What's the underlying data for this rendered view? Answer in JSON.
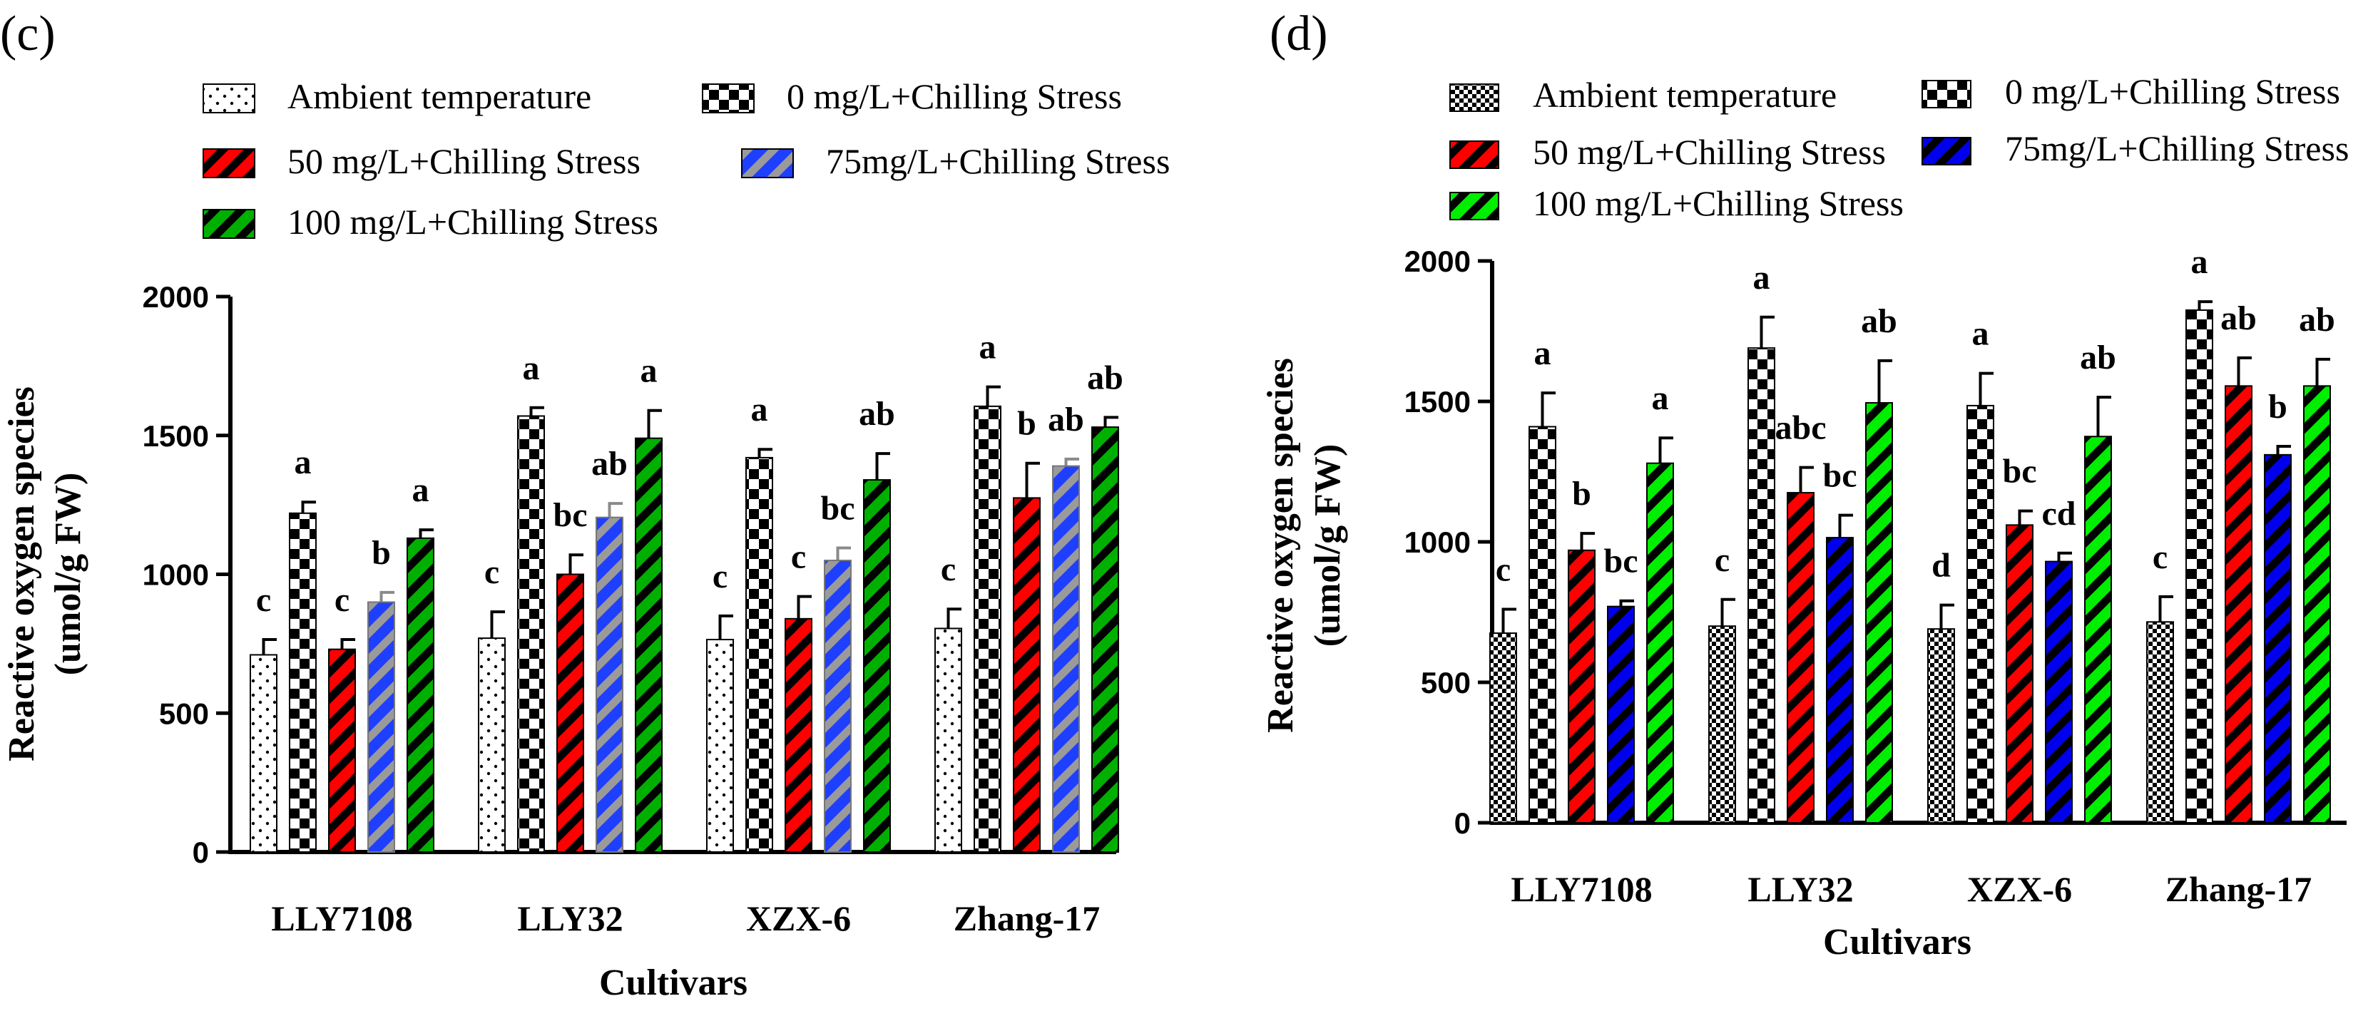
{
  "chart_data": [
    {
      "panel": "(c)",
      "type": "bar",
      "xlabel": "Cultivars",
      "ylabel": [
        "Reactive oxygen species",
        "(umol/g FW)"
      ],
      "ylim": [
        0,
        2000
      ],
      "yticks": [
        0,
        500,
        1000,
        1500,
        2000
      ],
      "categories": [
        "LLY7108",
        "LLY32",
        "XZX-6",
        "Zhang-17"
      ],
      "series": [
        {
          "name": "Ambient temperature",
          "style": "dots",
          "color": "#ffffff",
          "values": [
            710,
            770,
            765,
            805
          ],
          "errors": [
            55,
            95,
            85,
            70
          ],
          "labels": [
            "c",
            "c",
            "c",
            "c"
          ]
        },
        {
          "name": "0 mg/L+Chilling Stress",
          "style": "checker",
          "color": "#000000",
          "values": [
            1220,
            1570,
            1420,
            1605
          ],
          "errors": [
            40,
            30,
            30,
            70
          ],
          "labels": [
            "a",
            "a",
            "a",
            "a"
          ]
        },
        {
          "name": "50 mg/L+Chilling Stress",
          "style": "stripe",
          "color": "#ff0000",
          "values": [
            730,
            1000,
            840,
            1275
          ],
          "errors": [
            35,
            70,
            80,
            125
          ],
          "labels": [
            "c",
            "bc",
            "c",
            "b"
          ]
        },
        {
          "name": "75mg/L+Chilling Stress",
          "style": "stripe-gray",
          "color": "#1f3fff",
          "values": [
            900,
            1205,
            1050,
            1390
          ],
          "errors": [
            35,
            50,
            45,
            25
          ],
          "labels": [
            "b",
            "ab",
            "bc",
            "ab"
          ]
        },
        {
          "name": "100 mg/L+Chilling Stress",
          "style": "stripe",
          "color": "#00b000",
          "values": [
            1130,
            1490,
            1340,
            1530
          ],
          "errors": [
            30,
            100,
            95,
            35
          ],
          "labels": [
            "a",
            "a",
            "ab",
            "ab"
          ]
        }
      ]
    },
    {
      "panel": "(d)",
      "type": "bar",
      "xlabel": "Cultivars",
      "ylabel": [
        "Reactive oxygen species",
        "(umol/g FW)"
      ],
      "ylim": [
        0,
        2000
      ],
      "yticks": [
        0,
        500,
        1000,
        1500,
        2000
      ],
      "categories": [
        "LLY7108",
        "LLY32",
        "XZX-6",
        "Zhang-17"
      ],
      "series": [
        {
          "name": "Ambient temperature",
          "style": "checker-fine",
          "color": "#ffffff",
          "values": [
            675,
            700,
            690,
            715
          ],
          "errors": [
            85,
            95,
            85,
            90
          ],
          "labels": [
            "c",
            "c",
            "d",
            "c"
          ]
        },
        {
          "name": "0 mg/L+Chilling Stress",
          "style": "checker",
          "color": "#000000",
          "values": [
            1410,
            1690,
            1485,
            1825
          ],
          "errors": [
            120,
            110,
            115,
            30
          ],
          "labels": [
            "a",
            "a",
            "a",
            "a"
          ]
        },
        {
          "name": "50 mg/L+Chilling Stress",
          "style": "stripe",
          "color": "#ff0000",
          "values": [
            970,
            1175,
            1060,
            1555
          ],
          "errors": [
            60,
            90,
            50,
            100
          ],
          "labels": [
            "b",
            "abc",
            "bc",
            "ab"
          ]
        },
        {
          "name": "75mg/L+Chilling Stress",
          "style": "stripe",
          "color": "#0000ee",
          "values": [
            770,
            1015,
            930,
            1310
          ],
          "errors": [
            20,
            80,
            30,
            30
          ],
          "labels": [
            "bc",
            "bc",
            "cd",
            "b"
          ]
        },
        {
          "name": "100 mg/L+Chilling Stress",
          "style": "stripe",
          "color": "#00ee00",
          "values": [
            1280,
            1495,
            1375,
            1555
          ],
          "errors": [
            90,
            150,
            140,
            95
          ],
          "labels": [
            "a",
            "ab",
            "ab",
            "ab"
          ]
        }
      ]
    }
  ]
}
